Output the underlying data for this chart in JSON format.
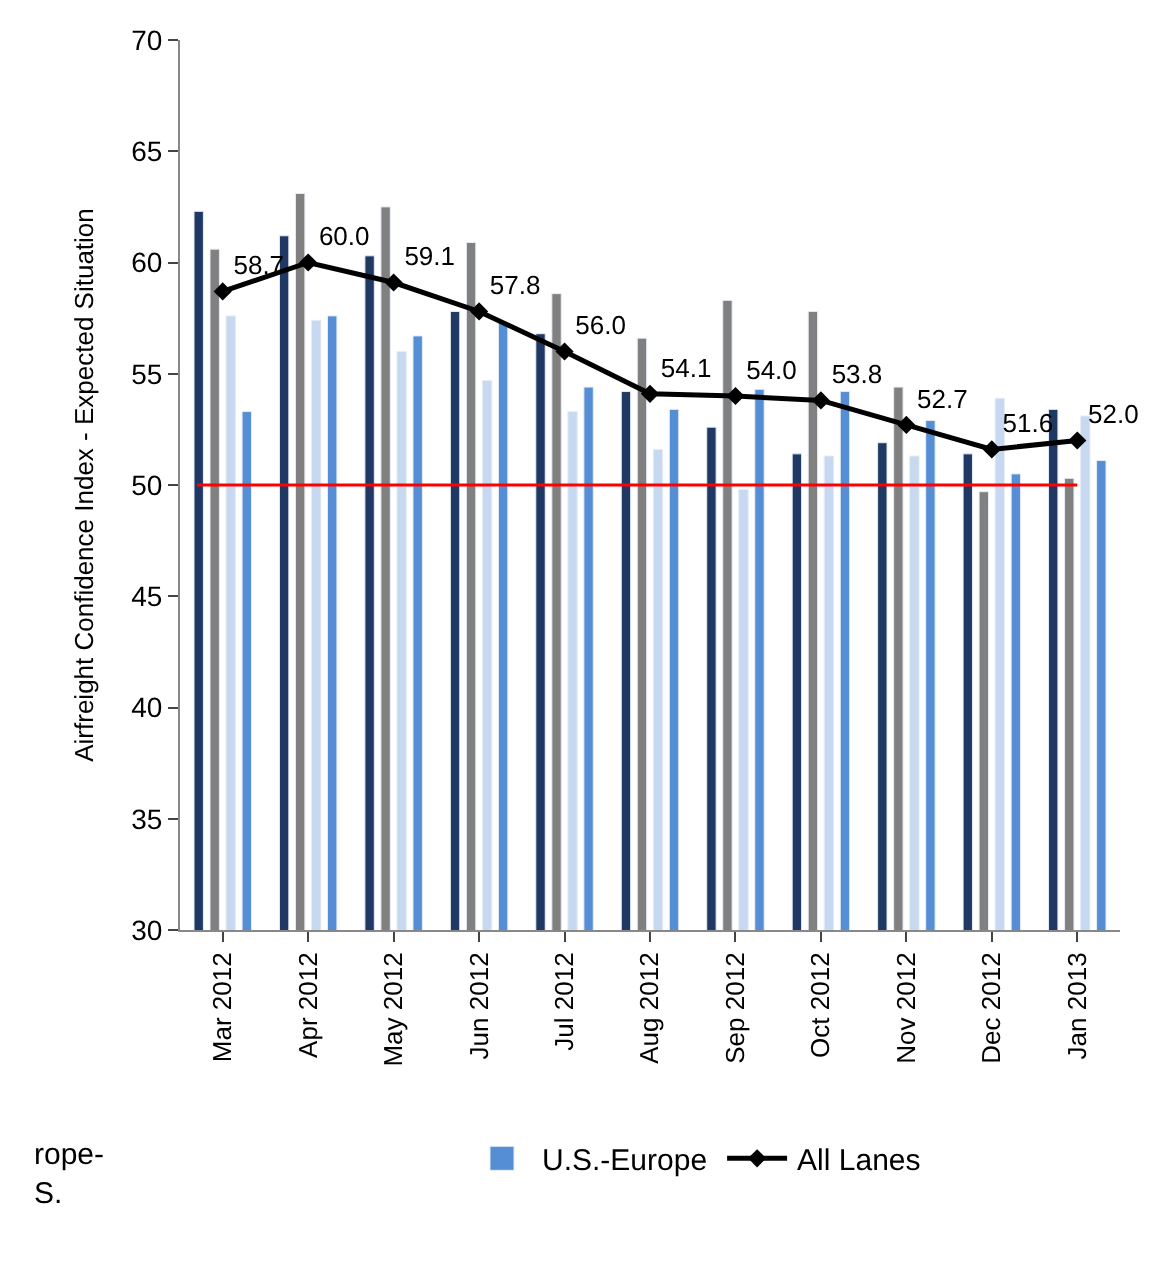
{
  "chart_data": {
    "type": "bar",
    "ylabel": "Airfreight Confidence Index - Expected Situation",
    "categories": [
      "Mar 2012",
      "Apr 2012",
      "May 2012",
      "Jun 2012",
      "Jul 2012",
      "Aug 2012",
      "Sep 2012",
      "Oct 2012",
      "Nov 2012",
      "Dec 2012",
      "Jan 2013"
    ],
    "ylim": [
      30,
      70
    ],
    "yticks": [
      30,
      35,
      40,
      45,
      50,
      55,
      60,
      65,
      70
    ],
    "legend": "bottom",
    "series": [
      {
        "color": "#1f3864",
        "values": [
          62.3,
          61.2,
          60.3,
          57.8,
          56.8,
          54.2,
          52.6,
          51.4,
          51.9,
          51.4,
          53.4
        ]
      },
      {
        "color": "#808080",
        "values": [
          60.6,
          63.1,
          62.5,
          60.9,
          58.6,
          56.6,
          58.3,
          57.8,
          54.4,
          49.7,
          50.3
        ]
      },
      {
        "color": "#c6d9f1",
        "values": [
          57.6,
          57.4,
          56.0,
          54.7,
          53.3,
          51.6,
          49.8,
          51.3,
          51.3,
          53.9,
          53.1
        ]
      },
      {
        "name": "U.S.-Europe",
        "color": "#558ed5",
        "values": [
          53.3,
          57.6,
          56.7,
          57.3,
          54.4,
          53.4,
          54.3,
          54.2,
          52.9,
          50.5,
          51.1
        ]
      },
      {
        "name": "All Lanes",
        "type": "line",
        "color": "#000000",
        "marker": "diamond",
        "values": [
          58.7,
          60.0,
          59.1,
          57.8,
          56.0,
          54.1,
          54.0,
          53.8,
          52.7,
          51.6,
          52.0
        ],
        "value_labels": [
          "58.7",
          "60.0",
          "59.1",
          "57.8",
          "56.0",
          "54.1",
          "54.0",
          "53.8",
          "52.7",
          "51.6",
          "52.0"
        ]
      }
    ],
    "ref_lines": [
      {
        "axis": "y",
        "value": 50,
        "color": "#ff0000"
      }
    ],
    "annotations": [
      "rope-\nS."
    ]
  }
}
